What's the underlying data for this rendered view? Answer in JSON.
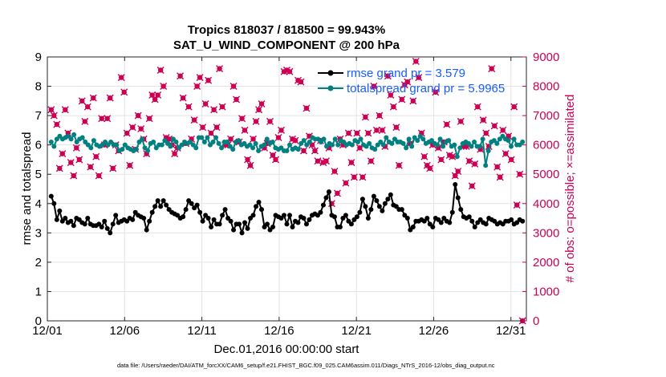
{
  "chart_data": {
    "type": "line",
    "title": "Tropics 818037 / 818500 = 99.943%",
    "subtitle": "SAT_U_WIND_COMPONENT @ 200 hPa",
    "xlabel": "Dec.01,2016 00:00:00 start",
    "ylabel": "rmse and totalspread",
    "y2label": "# of obs: o=possible; ×=assimilated",
    "footnote": "data file: /Users/raeder/DAI/ATM_forcXX/CAM6_setup/f.e21.FHIST_BGC.f09_025.CAM6assim.011/Diags_NTrS_2016-12/obs_diag_output.nc",
    "xlim": [
      1,
      32
    ],
    "ylim": [
      0,
      9
    ],
    "y2lim": [
      0,
      9000
    ],
    "x_ticks": [
      1,
      6,
      11,
      16,
      21,
      26,
      31
    ],
    "x_tick_labels": [
      "12/01",
      "12/06",
      "12/11",
      "12/16",
      "12/21",
      "12/26",
      "12/31"
    ],
    "y_ticks": [
      "0",
      "1",
      "2",
      "3",
      "4",
      "5",
      "6",
      "7",
      "8",
      "9"
    ],
    "y2_ticks": [
      "0",
      "1000",
      "2000",
      "3000",
      "4000",
      "5000",
      "6000",
      "7000",
      "8000",
      "9000"
    ],
    "grid": true,
    "legend_position": "top-right",
    "series": [
      {
        "name": "rmse grand pr = 3.579",
        "color": "#000000",
        "axis": "left",
        "values": [
          4.25,
          4.0,
          3.45,
          3.75,
          3.4,
          3.5,
          3.35,
          3.4,
          3.25,
          3.5,
          3.45,
          3.35,
          3.3,
          3.5,
          3.3,
          3.25,
          3.25,
          3.3,
          3.2,
          3.4,
          3.15,
          3.0,
          3.3,
          3.6,
          3.35,
          3.4,
          3.45,
          3.4,
          3.5,
          3.45,
          3.7,
          3.6,
          3.55,
          3.5,
          3.1,
          3.4,
          3.7,
          3.9,
          4.1,
          3.9,
          4.1,
          3.95,
          3.8,
          3.7,
          3.65,
          3.6,
          3.5,
          3.55,
          3.8,
          4.1,
          4.0,
          3.85,
          3.95,
          3.7,
          3.4,
          3.6,
          3.5,
          3.2,
          3.45,
          3.3,
          3.3,
          3.6,
          3.8,
          3.5,
          3.4,
          3.1,
          3.3,
          3.3,
          3.0,
          3.35,
          3.15,
          3.5,
          3.6,
          3.9,
          4.05,
          3.8,
          3.2,
          3.3,
          3.1,
          3.2,
          3.6,
          3.55,
          3.5,
          3.6,
          3.3,
          3.6,
          3.2,
          3.4,
          3.35,
          3.55,
          3.5,
          3.3,
          3.45,
          3.6,
          3.65,
          3.6,
          3.7,
          3.95,
          4.2,
          4.4,
          3.6,
          3.55,
          3.2,
          3.2,
          3.5,
          3.6,
          3.4,
          3.3,
          3.45,
          3.55,
          3.7,
          4.15,
          3.9,
          3.5,
          3.8,
          4.25,
          4.1,
          3.9,
          3.75,
          4.0,
          4.15,
          4.3,
          3.95,
          3.9,
          3.8,
          3.8,
          3.6,
          3.5,
          3.1,
          3.2,
          3.4,
          3.4,
          3.45,
          3.4,
          3.5,
          3.3,
          3.2,
          3.5,
          3.45,
          3.35,
          3.5,
          3.4,
          3.35,
          3.7,
          4.65,
          4.2,
          3.8,
          3.55,
          3.5,
          3.55,
          3.4,
          3.2,
          3.35,
          3.45,
          3.35,
          3.3,
          3.5,
          3.45,
          3.4,
          3.3,
          3.35,
          3.3,
          3.4,
          3.4,
          3.45,
          3.3,
          3.35,
          3.45,
          3.4
        ]
      },
      {
        "name": "totalspread grand pr = 5.9965",
        "color": "#008080",
        "axis": "left",
        "values": [
          6.1,
          5.95,
          6.2,
          6.3,
          6.2,
          6.25,
          6.3,
          6.2,
          6.35,
          6.1,
          6.2,
          6.25,
          6.1,
          6.0,
          5.9,
          6.15,
          6.0,
          5.95,
          6.0,
          6.1,
          6.0,
          6.1,
          6.0,
          6.0,
          5.8,
          5.85,
          6.0,
          5.9,
          5.85,
          5.8,
          5.85,
          6.1,
          6.2,
          5.9,
          5.8,
          6.05,
          6.1,
          5.9,
          6.0,
          6.0,
          6.15,
          6.05,
          5.95,
          6.2,
          6.1,
          5.9,
          6.0,
          6.1,
          6.05,
          6.1,
          6.0,
          5.9,
          6.25,
          6.25,
          6.1,
          6.25,
          6.0,
          6.1,
          6.25,
          6.05,
          5.9,
          6.1,
          6.1,
          5.95,
          5.85,
          6.1,
          6.15,
          6.0,
          6.05,
          5.95,
          6.0,
          5.9,
          6.05,
          5.8,
          5.95,
          6.0,
          6.2,
          6.05,
          6.1,
          5.9,
          5.85,
          5.9,
          5.8,
          5.8,
          6.0,
          5.85,
          5.9,
          5.85,
          6.05,
          6.15,
          6.0,
          6.1,
          6.25,
          6.2,
          6.2,
          6.1,
          6.2,
          5.95,
          6.05,
          6.0,
          6.2,
          6.0,
          6.15,
          6.1,
          6.0,
          6.05,
          6.0,
          6.15,
          6.1,
          6.2,
          6.0,
          5.95,
          6.05,
          5.9,
          5.85,
          6.0,
          6.1,
          6.0,
          6.25,
          6.1,
          6.05,
          6.2,
          6.1,
          6.1,
          6.05,
          5.9,
          6.2,
          5.95,
          6.25,
          6.15,
          6.3,
          6.2,
          6.05,
          6.1,
          6.15,
          6.05,
          6.0,
          6.2,
          5.95,
          6.1,
          6.15,
          5.95,
          6.0,
          5.6,
          5.9,
          6.05,
          6.1,
          6.05,
          5.95,
          6.1,
          5.95,
          5.95,
          6.2,
          5.3,
          5.8,
          6.1,
          6.15,
          6.05,
          6.2,
          6.3,
          6.2,
          6.15,
          5.95,
          6.2,
          6.0,
          6.0,
          6.1
        ]
      },
      {
        "name": "obs possible",
        "color": "#cc0052",
        "axis": "right",
        "values": [
          7200,
          7000,
          6700,
          5200,
          5700,
          7200,
          6400,
          5400,
          4950,
          5900,
          5500,
          7500,
          6800,
          7300,
          5250,
          7600,
          5600,
          4950,
          6900,
          6000,
          6900,
          7600,
          5200,
          6000,
          5800,
          8300,
          7800,
          6400,
          5300,
          6600,
          5850,
          7000,
          6550,
          6200,
          5700,
          6900,
          7700,
          7550,
          7700,
          8550,
          8000,
          6250,
          6200,
          6000,
          5700,
          5900,
          8350,
          7600,
          6050,
          7300,
          6200,
          6850,
          8000,
          8300,
          6600,
          7400,
          8200,
          6400,
          7200,
          6600,
          8600,
          7300,
          6000,
          6000,
          6200,
          8000,
          7550,
          6100,
          6900,
          6500,
          5500,
          5300,
          6200,
          6800,
          7200,
          7400,
          5900,
          6050,
          6800,
          5650,
          5500,
          6250,
          6500,
          8500,
          8550,
          8500,
          6200,
          6150,
          8200,
          8150,
          5800,
          7250,
          6300,
          6000,
          5800,
          5450,
          6150,
          5400,
          5450,
          5900,
          4000,
          5100,
          4350,
          6200,
          6000,
          4700,
          6400,
          5400,
          4900,
          6400,
          5900,
          4900,
          6950,
          6400,
          5450,
          8000,
          6500,
          7000,
          6500,
          5950,
          8350,
          7700,
          7300,
          6600,
          5300,
          7550,
          8050,
          8150,
          6050,
          7500,
          8850,
          8300,
          6400,
          5600,
          5300,
          5200,
          6000,
          7800,
          5900,
          5500,
          6100,
          6700,
          5650,
          5600,
          4950,
          5100,
          6800,
          5950,
          5950,
          5450,
          4600,
          5350,
          7300,
          5850,
          6850,
          6400,
          5950,
          8600,
          6650,
          5250,
          4900,
          6500,
          5700,
          6300,
          5500,
          7300,
          3950,
          5000,
          0
        ]
      }
    ]
  }
}
